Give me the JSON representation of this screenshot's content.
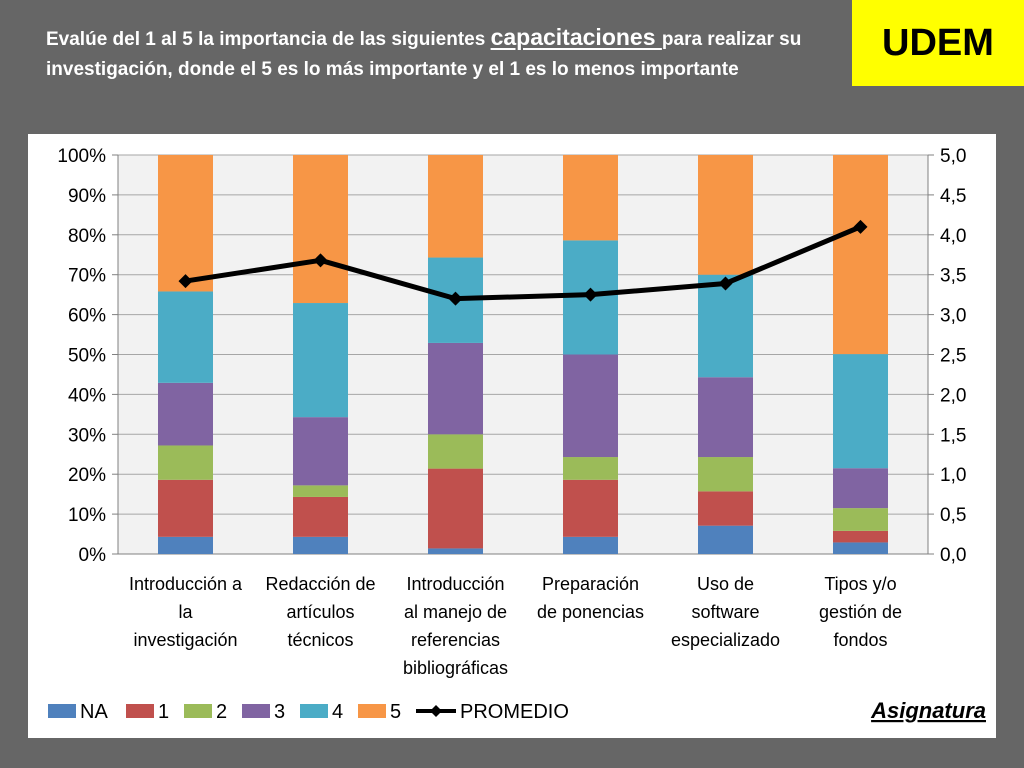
{
  "header": {
    "question_part1": "Evalúe del 1 al 5 la importancia de las siguientes ",
    "question_emph": "capacitaciones ",
    "question_part2": "para realizar su investigación, donde el 5 es lo más importante y el 1 es lo menos importante"
  },
  "brand": {
    "logo_text": "UDEM"
  },
  "colors": {
    "NA": "#4f81bd",
    "1": "#c0504d",
    "2": "#9bbb59",
    "3": "#8064a2",
    "4": "#4bacc6",
    "5": "#f79646",
    "PROMEDIO": "#000000",
    "plot_bg": "#f2f2f2",
    "grid": "#a6a6a6"
  },
  "chart_data": {
    "type": "bar",
    "stacked": true,
    "title": "",
    "categories": [
      [
        "Introducción a",
        "la",
        "investigación"
      ],
      [
        "Redacción de",
        "artículos",
        "técnicos"
      ],
      [
        "Introducción",
        "al manejo de",
        "referencias",
        "bibliográficas"
      ],
      [
        "Preparación",
        "de ponencias"
      ],
      [
        "Uso de",
        "software",
        "especializado"
      ],
      [
        "Tipos y/o",
        "gestión de",
        "fondos"
      ]
    ],
    "series": [
      {
        "name": "NA",
        "values": [
          4.3,
          4.3,
          1.4,
          4.3,
          7.1,
          2.9
        ]
      },
      {
        "name": "1",
        "values": [
          14.3,
          10.0,
          20.0,
          14.3,
          8.6,
          2.9
        ]
      },
      {
        "name": "2",
        "values": [
          8.6,
          2.9,
          8.6,
          5.7,
          8.6,
          5.7
        ]
      },
      {
        "name": "3",
        "values": [
          15.7,
          17.1,
          22.9,
          25.7,
          20.0,
          10.0
        ]
      },
      {
        "name": "4",
        "values": [
          22.9,
          28.6,
          21.4,
          28.6,
          25.7,
          28.6
        ]
      },
      {
        "name": "5",
        "values": [
          34.2,
          37.1,
          25.7,
          21.4,
          30.0,
          49.9
        ]
      }
    ],
    "line_series": {
      "name": "PROMEDIO",
      "values": [
        3.42,
        3.68,
        3.2,
        3.25,
        3.39,
        4.1
      ]
    },
    "y_left": {
      "ylim": [
        0,
        100
      ],
      "ticks": [
        "0%",
        "10%",
        "20%",
        "30%",
        "40%",
        "50%",
        "60%",
        "70%",
        "80%",
        "90%",
        "100%"
      ]
    },
    "y_right": {
      "ylim": [
        0,
        5
      ],
      "ticks": [
        "0,0",
        "0,5",
        "1,0",
        "1,5",
        "2,0",
        "2,5",
        "3,0",
        "3,5",
        "4,0",
        "4,5",
        "5,0"
      ]
    },
    "legend": {
      "position": "bottom",
      "labels": [
        "NA",
        "1",
        "2",
        "3",
        "4",
        "5",
        "PROMEDIO"
      ]
    },
    "grid": true
  },
  "footer_label": "Asignatura"
}
